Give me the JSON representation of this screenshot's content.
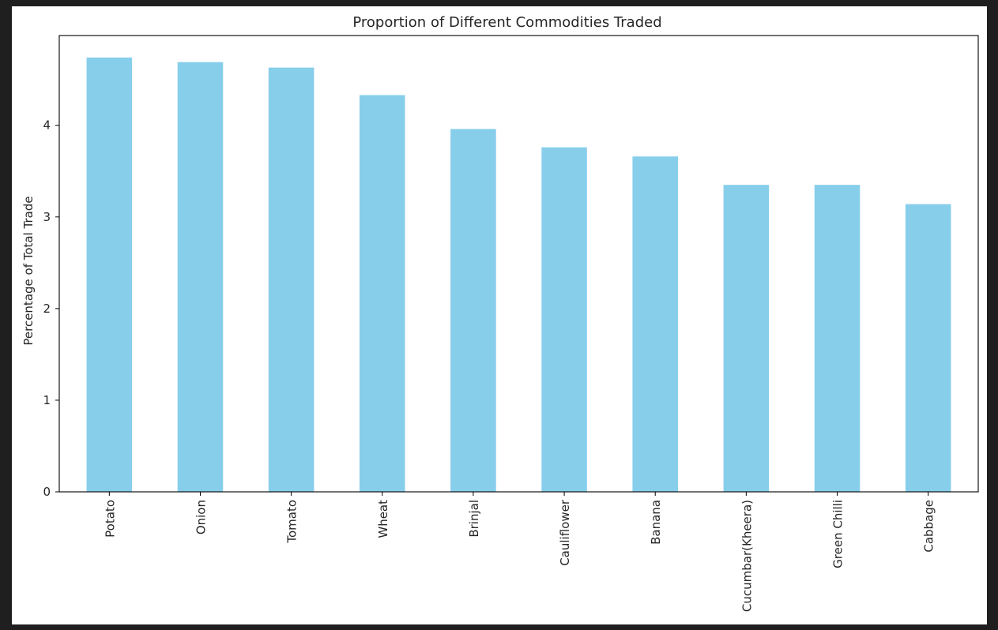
{
  "chart_data": {
    "type": "bar",
    "title": "Proportion of Different Commodities Traded",
    "xlabel": "",
    "ylabel": "Percentage of Total Trade",
    "categories": [
      "Potato",
      "Onion",
      "Tomato",
      "Wheat",
      "Brinjal",
      "Cauliflower",
      "Banana",
      "Cucumbar(Kheera)",
      "Green Chilli",
      "Cabbage"
    ],
    "values": [
      4.74,
      4.69,
      4.63,
      4.33,
      3.96,
      3.76,
      3.66,
      3.35,
      3.35,
      3.14
    ],
    "yticks": [
      0,
      1,
      2,
      3,
      4
    ],
    "ylim": [
      0,
      4.98
    ],
    "grid": false,
    "bar_color": "#87ceeb"
  }
}
